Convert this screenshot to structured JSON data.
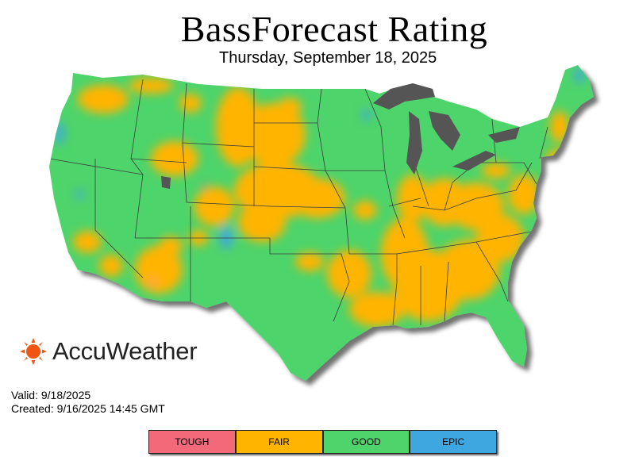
{
  "header": {
    "title": "BassForecast Rating",
    "date": "Thursday, September 18, 2025"
  },
  "brand": {
    "name": "AccuWeather",
    "logo_icon": "sun-icon",
    "logo_color": "#f05514"
  },
  "footer": {
    "valid": "Valid: 9/18/2025",
    "created": "Created: 9/16/2025 14:45 GMT"
  },
  "legend": {
    "items": [
      {
        "label": "TOUGH",
        "color": "#f2697a"
      },
      {
        "label": "FAIR",
        "color": "#ffb400"
      },
      {
        "label": "GOOD",
        "color": "#4ed46a"
      },
      {
        "label": "EPIC",
        "color": "#3fa7e0"
      }
    ]
  },
  "map": {
    "base_color": "#4ed46a",
    "fair_color": "#ffb400",
    "epic_color": "#3fa7e0",
    "tough_color": "#f2697a",
    "lake_color": "#555555",
    "border_color": "#3c3c3c"
  }
}
